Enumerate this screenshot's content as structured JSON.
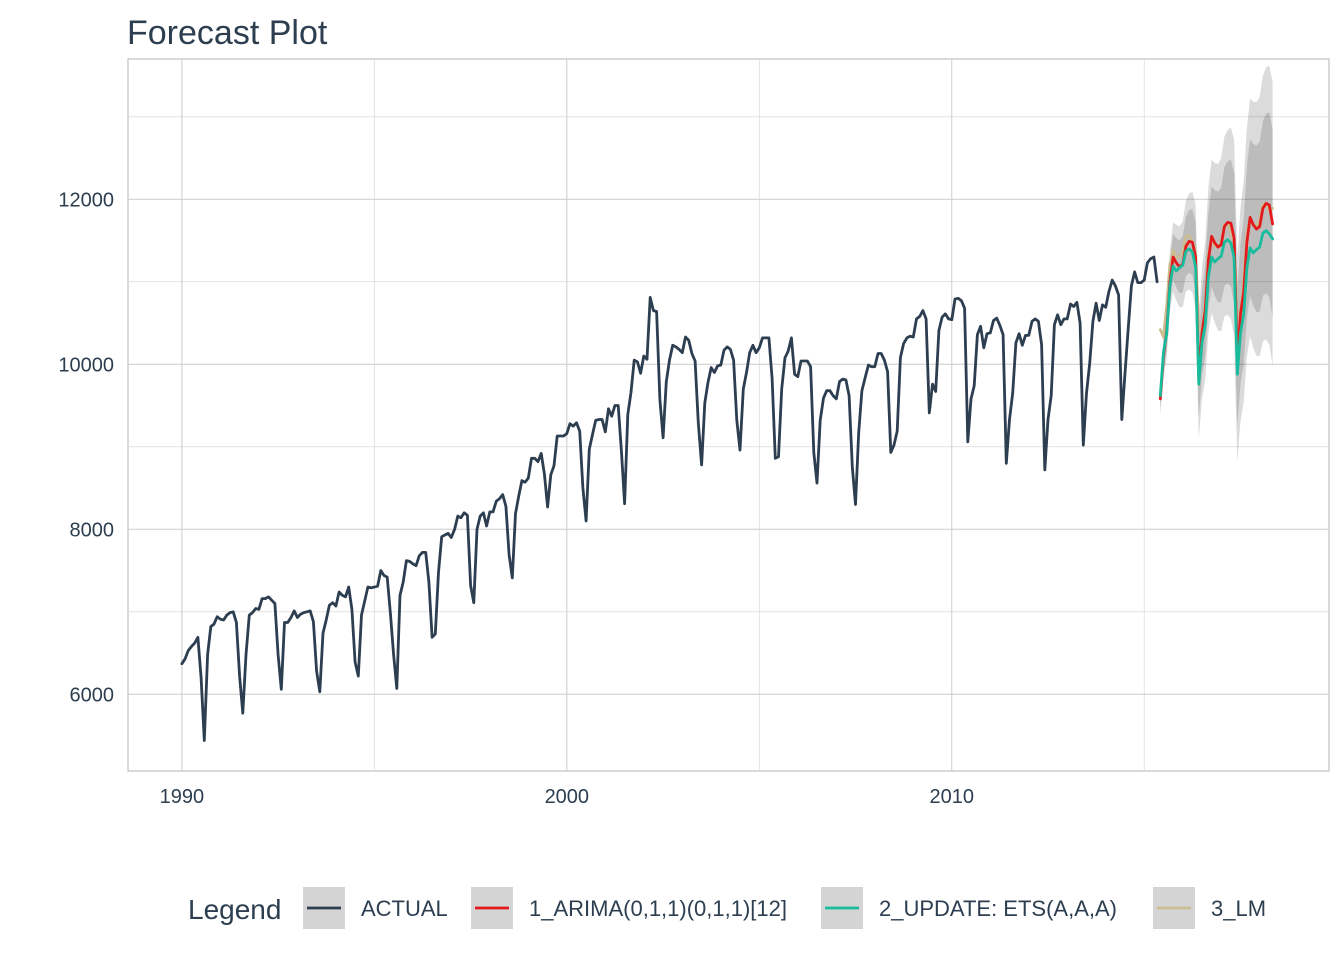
{
  "chart_data": {
    "type": "line",
    "title": "Forecast Plot",
    "xlabel": "",
    "ylabel": "",
    "x_ticks": [
      "1990",
      "2000",
      "2010"
    ],
    "y_ticks": [
      "6000",
      "8000",
      "10000",
      "12000"
    ],
    "xlim": [
      1988.6,
      2019.8
    ],
    "ylim": [
      5070,
      13700
    ],
    "grid": true,
    "legend_title": "Legend",
    "legend_position": "bottom",
    "series": [
      {
        "name": "ACTUAL",
        "color": "#2c3e50",
        "start": 1990.0,
        "step": 0.0833333,
        "values": [
          6370,
          6430,
          6530,
          6580,
          6620,
          6690,
          6200,
          5440,
          6480,
          6820,
          6850,
          6940,
          6910,
          6900,
          6960,
          6990,
          7000,
          6870,
          6220,
          5770,
          6480,
          6960,
          6990,
          7040,
          7030,
          7160,
          7160,
          7180,
          7140,
          7100,
          6480,
          6060,
          6870,
          6870,
          6930,
          7010,
          6930,
          6970,
          6990,
          7000,
          7010,
          6880,
          6280,
          6030,
          6740,
          6900,
          7080,
          7110,
          7070,
          7240,
          7200,
          7180,
          7300,
          7030,
          6390,
          6220,
          6960,
          7130,
          7300,
          7290,
          7300,
          7310,
          7500,
          7440,
          7420,
          6980,
          6480,
          6070,
          7200,
          7360,
          7620,
          7610,
          7580,
          7560,
          7680,
          7720,
          7720,
          7360,
          6690,
          6730,
          7480,
          7910,
          7930,
          7950,
          7900,
          8000,
          8160,
          8140,
          8200,
          8170,
          7320,
          7110,
          8000,
          8160,
          8200,
          8040,
          8210,
          8210,
          8340,
          8370,
          8420,
          8280,
          7690,
          7410,
          8190,
          8400,
          8590,
          8570,
          8620,
          8860,
          8860,
          8820,
          8920,
          8670,
          8270,
          8660,
          8770,
          9130,
          9130,
          9130,
          9160,
          9280,
          9250,
          9290,
          9190,
          8500,
          8100,
          8970,
          9150,
          9320,
          9330,
          9330,
          9180,
          9460,
          9370,
          9500,
          9500,
          8950,
          8310,
          9390,
          9660,
          10050,
          10030,
          9890,
          10100,
          10060,
          10810,
          10650,
          10640,
          9570,
          9110,
          9790,
          10050,
          10230,
          10210,
          10180,
          10140,
          10330,
          10290,
          10130,
          10040,
          9290,
          8780,
          9530,
          9780,
          9960,
          9900,
          9980,
          9990,
          10170,
          10210,
          10180,
          10050,
          9320,
          8960,
          9700,
          9900,
          10140,
          10230,
          10140,
          10200,
          10320,
          10320,
          10320,
          9830,
          8860,
          8880,
          9700,
          10080,
          10160,
          10320,
          9880,
          9850,
          10040,
          10040,
          10040,
          9970,
          8930,
          8560,
          9320,
          9590,
          9680,
          9680,
          9620,
          9580,
          9790,
          9820,
          9810,
          9620,
          8760,
          8300,
          9170,
          9680,
          9840,
          9990,
          9970,
          9970,
          10130,
          10130,
          10050,
          9910,
          8930,
          9020,
          9190,
          10080,
          10250,
          10320,
          10340,
          10330,
          10550,
          10580,
          10650,
          10550,
          9410,
          9760,
          9670,
          10410,
          10570,
          10610,
          10550,
          10540,
          10790,
          10800,
          10770,
          10680,
          9060,
          9580,
          9740,
          10360,
          10460,
          10200,
          10370,
          10380,
          10530,
          10560,
          10470,
          10360,
          8800,
          9330,
          9650,
          10260,
          10370,
          10230,
          10350,
          10350,
          10520,
          10550,
          10520,
          10240,
          8720,
          9330,
          9620,
          10480,
          10600,
          10480,
          10550,
          10550,
          10730,
          10700,
          10750,
          10500,
          9020,
          9650,
          10010,
          10520,
          10740,
          10530,
          10720,
          10690,
          10880,
          11020,
          10950,
          10840,
          9330,
          9890,
          10430,
          10950,
          11120,
          10990,
          10990,
          11020,
          11230,
          11280,
          11300,
          11000
        ]
      },
      {
        "name": "1_ARIMA(0,1,1)(0,1,1)[12]",
        "color": "#e31a1c",
        "start": 2015.417,
        "step": 0.0833333,
        "values": [
          9580,
          10100,
          10400,
          11000,
          11300,
          11230,
          11180,
          11210,
          11430,
          11490,
          11480,
          11300,
          9840,
          10380,
          10650,
          11260,
          11550,
          11470,
          11420,
          11450,
          11670,
          11720,
          11710,
          11530,
          10070,
          10610,
          10880,
          11480,
          11780,
          11690,
          11640,
          11670,
          11890,
          11950,
          11930,
          11700
        ],
        "lower_80": [
          9450,
          9920,
          10180,
          10750,
          11020,
          10930,
          10860,
          10870,
          11070,
          11110,
          11080,
          10880,
          9350,
          9860,
          10100,
          10680,
          10940,
          10830,
          10750,
          10760,
          10950,
          10980,
          10940,
          10740,
          9250,
          9760,
          10000,
          10560,
          10830,
          10710,
          10630,
          10640,
          10830,
          10860,
          10810,
          10560
        ],
        "upper_80": [
          9710,
          10280,
          10620,
          11250,
          11580,
          11530,
          11500,
          11550,
          11790,
          11870,
          11880,
          11720,
          10330,
          10900,
          11200,
          11840,
          12160,
          12110,
          12090,
          12140,
          12390,
          12460,
          12480,
          12320,
          10890,
          11460,
          11760,
          12400,
          12730,
          12670,
          12650,
          12700,
          12950,
          13040,
          13050,
          12840
        ],
        "lower_95": [
          9380,
          9830,
          10070,
          10620,
          10880,
          10770,
          10690,
          10690,
          10880,
          10910,
          10870,
          10660,
          9090,
          9590,
          9810,
          10380,
          10620,
          10500,
          10410,
          10400,
          10580,
          10600,
          10550,
          10340,
          8820,
          9310,
          9540,
          10090,
          10340,
          10200,
          10100,
          10100,
          10280,
          10300,
          10240,
          9980
        ],
        "upper_95": [
          9780,
          10370,
          10730,
          11380,
          11720,
          11690,
          11670,
          11730,
          11980,
          12070,
          12090,
          11940,
          10590,
          11170,
          11490,
          12140,
          12480,
          12440,
          12430,
          12500,
          12760,
          12840,
          12870,
          12720,
          11320,
          11910,
          12220,
          12870,
          13220,
          13180,
          13180,
          13240,
          13500,
          13600,
          13620,
          13420
        ]
      },
      {
        "name": "2_UPDATE: ETS(A,A,A)",
        "color": "#18bc9c",
        "start": 2015.417,
        "step": 0.0833333,
        "values": [
          9620,
          10150,
          10370,
          10950,
          11190,
          11130,
          11170,
          11200,
          11370,
          11400,
          11360,
          11180,
          9760,
          10260,
          10480,
          11060,
          11300,
          11240,
          11280,
          11310,
          11480,
          11510,
          11470,
          11290,
          9880,
          10380,
          10600,
          11170,
          11410,
          11350,
          11390,
          11420,
          11590,
          11620,
          11580,
          11520
        ]
      },
      {
        "name": "3_LM",
        "color": "#ccbe93",
        "start": 2015.417,
        "step": 0.0833333,
        "values": [
          10420,
          10330,
          10720,
          11210,
          11380,
          11300,
          11300,
          11360,
          11550,
          11560,
          11490,
          11360,
          10450,
          10400,
          10720,
          11320,
          11520,
          11430,
          11420,
          11480,
          11690,
          11700,
          11610,
          11470,
          10580,
          10560,
          11000,
          11590,
          11780,
          11690,
          11680,
          11750,
          11940,
          11950,
          11860,
          11890
        ]
      }
    ]
  }
}
